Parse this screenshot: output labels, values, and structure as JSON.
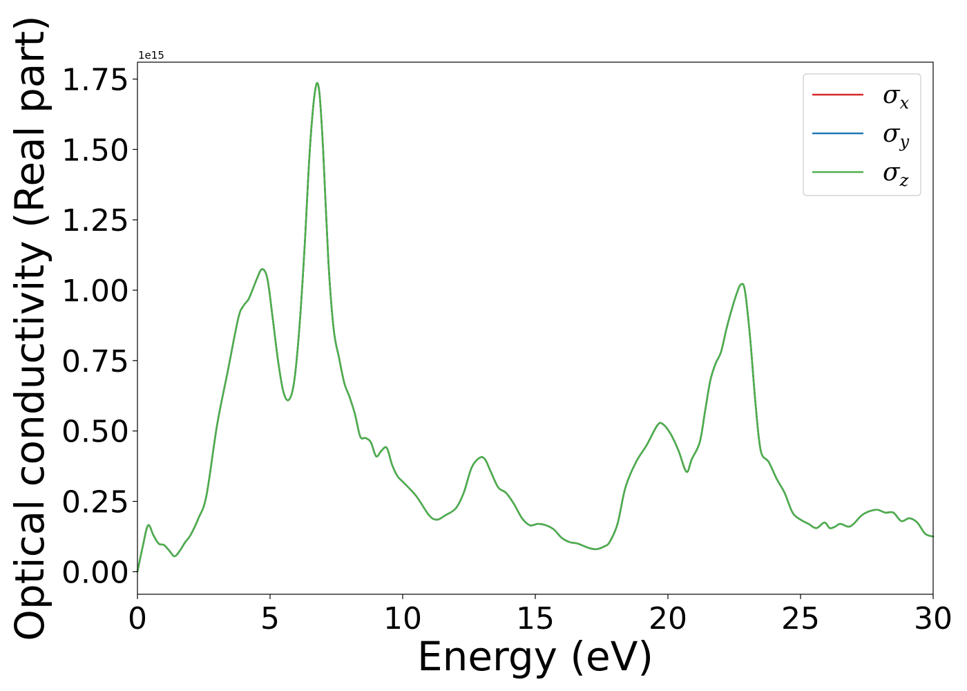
{
  "chart_data": {
    "type": "line",
    "xlabel": "Energy (eV)",
    "ylabel": "Optical conductivity (Real part)",
    "y_offset_text": "1e15",
    "xlim": [
      0,
      30
    ],
    "ylim": [
      -0.08,
      1.81
    ],
    "x_ticks": [
      "0",
      "5",
      "10",
      "15",
      "20",
      "25",
      "30"
    ],
    "y_ticks": [
      "0.00",
      "0.25",
      "0.50",
      "0.75",
      "1.00",
      "1.25",
      "1.50",
      "1.75"
    ],
    "legend_position": "top-right",
    "grid": false,
    "x": [
      0,
      0.2,
      0.4,
      0.6,
      0.8,
      1.0,
      1.2,
      1.4,
      1.6,
      1.8,
      2.0,
      2.3,
      2.6,
      3.0,
      3.4,
      3.8,
      4.0,
      4.2,
      4.5,
      4.7,
      4.9,
      5.1,
      5.3,
      5.5,
      5.7,
      5.9,
      6.1,
      6.3,
      6.5,
      6.7,
      6.85,
      7.0,
      7.2,
      7.4,
      7.6,
      7.8,
      8.0,
      8.2,
      8.4,
      8.6,
      8.8,
      9.0,
      9.2,
      9.4,
      9.6,
      9.8,
      10.0,
      10.5,
      11.0,
      11.3,
      11.6,
      12.0,
      12.3,
      12.6,
      12.9,
      13.1,
      13.3,
      13.6,
      13.9,
      14.2,
      14.5,
      14.8,
      15.1,
      15.4,
      15.7,
      16.0,
      16.3,
      16.6,
      17.0,
      17.3,
      17.6,
      17.8,
      18.1,
      18.4,
      18.8,
      19.2,
      19.6,
      19.8,
      20.1,
      20.4,
      20.7,
      20.9,
      21.2,
      21.4,
      21.6,
      21.8,
      22.0,
      22.2,
      22.4,
      22.6,
      22.75,
      22.9,
      23.1,
      23.3,
      23.5,
      23.8,
      24.1,
      24.4,
      24.7,
      25.0,
      25.3,
      25.6,
      25.9,
      26.1,
      26.3,
      26.5,
      26.8,
      27.0,
      27.3,
      27.6,
      27.9,
      28.2,
      28.5,
      28.8,
      29.1,
      29.4,
      29.7,
      30.0
    ],
    "series": [
      {
        "name": "σx",
        "color": "#d62728",
        "values": [
          0.0,
          0.09,
          0.165,
          0.13,
          0.1,
          0.095,
          0.075,
          0.055,
          0.075,
          0.105,
          0.13,
          0.19,
          0.27,
          0.52,
          0.71,
          0.9,
          0.945,
          0.97,
          1.04,
          1.075,
          1.04,
          0.9,
          0.75,
          0.64,
          0.61,
          0.67,
          0.86,
          1.15,
          1.5,
          1.71,
          1.71,
          1.5,
          1.1,
          0.86,
          0.76,
          0.67,
          0.62,
          0.56,
          0.48,
          0.475,
          0.46,
          0.41,
          0.43,
          0.44,
          0.38,
          0.34,
          0.32,
          0.27,
          0.2,
          0.185,
          0.2,
          0.225,
          0.28,
          0.37,
          0.405,
          0.4,
          0.36,
          0.3,
          0.28,
          0.24,
          0.19,
          0.165,
          0.17,
          0.165,
          0.15,
          0.12,
          0.105,
          0.1,
          0.085,
          0.08,
          0.09,
          0.105,
          0.17,
          0.3,
          0.39,
          0.45,
          0.52,
          0.525,
          0.49,
          0.43,
          0.355,
          0.4,
          0.46,
          0.57,
          0.68,
          0.74,
          0.78,
          0.86,
          0.93,
          0.99,
          1.02,
          1.0,
          0.83,
          0.6,
          0.43,
          0.39,
          0.33,
          0.28,
          0.21,
          0.185,
          0.17,
          0.155,
          0.175,
          0.155,
          0.16,
          0.17,
          0.16,
          0.17,
          0.2,
          0.215,
          0.22,
          0.21,
          0.21,
          0.18,
          0.19,
          0.175,
          0.135,
          0.125
        ]
      },
      {
        "name": "σy",
        "color": "#1f77b4",
        "values": [
          0.0,
          0.09,
          0.165,
          0.13,
          0.1,
          0.095,
          0.075,
          0.055,
          0.075,
          0.105,
          0.13,
          0.19,
          0.27,
          0.52,
          0.71,
          0.9,
          0.945,
          0.97,
          1.04,
          1.075,
          1.04,
          0.9,
          0.75,
          0.64,
          0.61,
          0.67,
          0.86,
          1.15,
          1.5,
          1.71,
          1.71,
          1.5,
          1.1,
          0.86,
          0.76,
          0.67,
          0.62,
          0.56,
          0.48,
          0.475,
          0.46,
          0.41,
          0.43,
          0.44,
          0.38,
          0.34,
          0.32,
          0.27,
          0.2,
          0.185,
          0.2,
          0.225,
          0.28,
          0.37,
          0.405,
          0.4,
          0.36,
          0.3,
          0.28,
          0.24,
          0.19,
          0.165,
          0.17,
          0.165,
          0.15,
          0.12,
          0.105,
          0.1,
          0.085,
          0.08,
          0.09,
          0.105,
          0.17,
          0.3,
          0.39,
          0.45,
          0.52,
          0.525,
          0.49,
          0.43,
          0.355,
          0.4,
          0.46,
          0.57,
          0.68,
          0.74,
          0.78,
          0.86,
          0.93,
          0.99,
          1.02,
          1.0,
          0.83,
          0.6,
          0.43,
          0.39,
          0.33,
          0.28,
          0.21,
          0.185,
          0.17,
          0.155,
          0.175,
          0.155,
          0.16,
          0.17,
          0.16,
          0.17,
          0.2,
          0.215,
          0.22,
          0.21,
          0.21,
          0.18,
          0.19,
          0.175,
          0.135,
          0.125
        ]
      },
      {
        "name": "σz",
        "color": "#4daf4a",
        "values": [
          0.0,
          0.09,
          0.165,
          0.13,
          0.1,
          0.095,
          0.075,
          0.055,
          0.075,
          0.105,
          0.13,
          0.19,
          0.27,
          0.52,
          0.71,
          0.9,
          0.945,
          0.97,
          1.04,
          1.075,
          1.04,
          0.9,
          0.75,
          0.64,
          0.61,
          0.67,
          0.86,
          1.15,
          1.5,
          1.71,
          1.71,
          1.5,
          1.1,
          0.86,
          0.76,
          0.67,
          0.62,
          0.56,
          0.48,
          0.475,
          0.46,
          0.41,
          0.43,
          0.44,
          0.38,
          0.34,
          0.32,
          0.27,
          0.2,
          0.185,
          0.2,
          0.225,
          0.28,
          0.37,
          0.405,
          0.4,
          0.36,
          0.3,
          0.28,
          0.24,
          0.19,
          0.165,
          0.17,
          0.165,
          0.15,
          0.12,
          0.105,
          0.1,
          0.085,
          0.08,
          0.09,
          0.105,
          0.17,
          0.3,
          0.39,
          0.45,
          0.52,
          0.525,
          0.49,
          0.43,
          0.355,
          0.4,
          0.46,
          0.57,
          0.68,
          0.74,
          0.78,
          0.86,
          0.93,
          0.99,
          1.02,
          1.0,
          0.83,
          0.6,
          0.43,
          0.39,
          0.33,
          0.28,
          0.21,
          0.185,
          0.17,
          0.155,
          0.175,
          0.155,
          0.16,
          0.17,
          0.16,
          0.17,
          0.2,
          0.215,
          0.22,
          0.21,
          0.21,
          0.18,
          0.19,
          0.175,
          0.135,
          0.125
        ]
      }
    ],
    "legend": [
      {
        "symbol": "σ",
        "sub": "x",
        "color": "#d62728"
      },
      {
        "symbol": "σ",
        "sub": "y",
        "color": "#1f77b4"
      },
      {
        "symbol": "σ",
        "sub": "z",
        "color": "#4daf4a"
      }
    ]
  }
}
